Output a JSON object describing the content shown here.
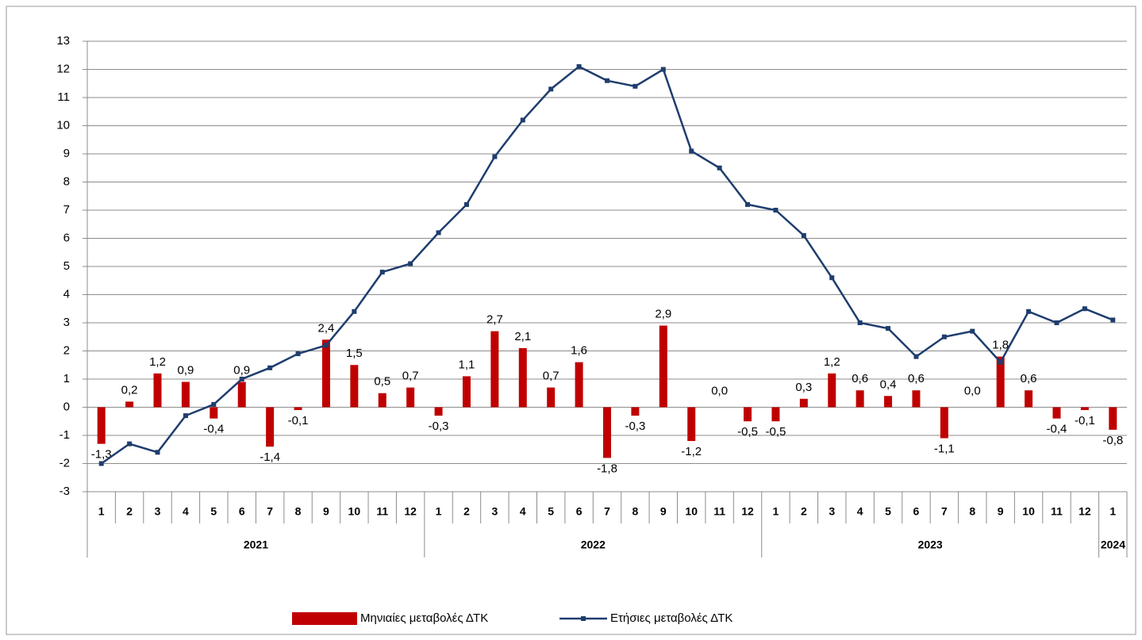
{
  "chart_data": {
    "type": "bar-line",
    "groups": [
      {
        "name": "2021",
        "categories": [
          "1",
          "2",
          "3",
          "4",
          "5",
          "6",
          "7",
          "8",
          "9",
          "10",
          "11",
          "12"
        ]
      },
      {
        "name": "2022",
        "categories": [
          "1",
          "2",
          "3",
          "4",
          "5",
          "6",
          "7",
          "8",
          "9",
          "10",
          "11",
          "12"
        ]
      },
      {
        "name": "2023",
        "categories": [
          "1",
          "2",
          "3",
          "4",
          "5",
          "6",
          "7",
          "8",
          "9",
          "10",
          "11",
          "12"
        ]
      },
      {
        "name": "2024",
        "categories": [
          "1"
        ]
      }
    ],
    "series": [
      {
        "name": "Μηνιαίες μεταβολές ΔΤΚ",
        "type": "bar",
        "color": "#c00000",
        "values": [
          -1.3,
          0.2,
          1.2,
          0.9,
          -0.4,
          0.9,
          -1.4,
          -0.1,
          2.4,
          1.5,
          0.5,
          0.7,
          -0.3,
          1.1,
          2.7,
          2.1,
          0.7,
          1.6,
          -1.8,
          -0.3,
          2.9,
          -1.2,
          0.0,
          -0.5,
          -0.5,
          0.3,
          1.2,
          0.6,
          0.4,
          0.6,
          -1.1,
          0.0,
          1.8,
          0.6,
          -0.4,
          -0.1,
          -0.8
        ],
        "value_labels": [
          "-1,3",
          "0,2",
          "1,2",
          "0,9",
          "-0,4",
          "0,9",
          "-1,4",
          "-0,1",
          "2,4",
          "1,5",
          "0,5",
          "0,7",
          "-0,3",
          "1,1",
          "2,7",
          "2,1",
          "0,7",
          "1,6",
          "-1,8",
          "-0,3",
          "2,9",
          "-1,2",
          "0,0",
          "-0,5",
          "-0,5",
          "0,3",
          "1,2",
          "0,6",
          "0,4",
          "0,6",
          "-1,1",
          "0,0",
          "1,8",
          "0,6",
          "-0,4",
          "-0,1",
          "-0,8"
        ]
      },
      {
        "name": "Ετήσιες μεταβολές ΔΤΚ",
        "type": "line",
        "color": "#1f3d6e",
        "values": [
          -2.0,
          -1.3,
          -1.6,
          -0.3,
          0.1,
          1.0,
          1.4,
          1.9,
          2.2,
          3.4,
          4.8,
          5.1,
          6.2,
          7.2,
          8.9,
          10.2,
          11.3,
          12.1,
          11.6,
          11.4,
          12.0,
          9.1,
          8.5,
          7.2,
          7.0,
          6.1,
          4.6,
          3.0,
          2.8,
          1.8,
          2.5,
          2.7,
          1.6,
          3.4,
          3.0,
          3.5,
          3.1
        ]
      }
    ],
    "ylim": [
      -3,
      13
    ],
    "yticks": [
      -3,
      -2,
      -1,
      0,
      1,
      2,
      3,
      4,
      5,
      6,
      7,
      8,
      9,
      10,
      11,
      12,
      13
    ],
    "grid": true,
    "legend": "bottom"
  }
}
